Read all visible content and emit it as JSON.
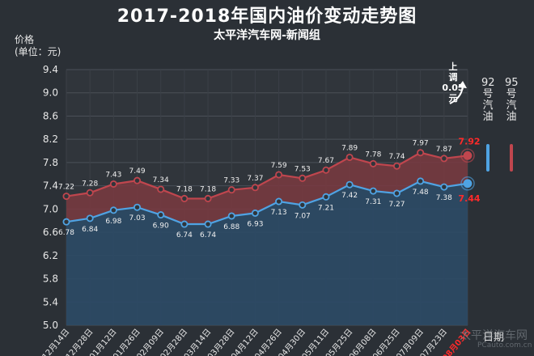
{
  "title": "2017-2018年国内油价变动走势图",
  "subtitle": "太平洋汽车网-新闻组",
  "ylabel_line1": "价格",
  "ylabel_line2": "(单位：元)",
  "xlabel": "日期",
  "legend": {
    "s92": "92号汽油",
    "s95": "95号汽油"
  },
  "annotation": {
    "line1": "上",
    "line2": "调",
    "line3": "0.05",
    "line4": "元"
  },
  "watermark": "太平洋汽车网",
  "watermark_url": "PCauto.com.cn",
  "colors": {
    "s92": "#4fa3e3",
    "s95": "#c0464e",
    "latest_label": "#ff2a2a"
  },
  "chart_data": {
    "type": "line",
    "title": "2017-2018年国内油价变动走势图",
    "xlabel": "日期",
    "ylabel": "价格 (单位：元)",
    "ylim": [
      5.0,
      9.4
    ],
    "yticks": [
      "5.0",
      "5.4",
      "5.8",
      "6.2",
      "6.6",
      "7.0",
      "7.4",
      "7.8",
      "8.2",
      "8.6",
      "9.0",
      "9.4"
    ],
    "grid": true,
    "categories": [
      "12月14日",
      "12月28日",
      "01月12日",
      "01月26日",
      "02月09日",
      "02月28日",
      "03月14日",
      "03月28日",
      "04月12日",
      "04月26日",
      "04月30日",
      "05月11日",
      "05月25日",
      "06月08日",
      "06月25日",
      "07月09日",
      "07月23日",
      "08月03日"
    ],
    "series": [
      {
        "name": "95号汽油",
        "values": [
          7.22,
          7.28,
          7.43,
          7.49,
          7.34,
          7.18,
          7.18,
          7.33,
          7.37,
          7.59,
          7.53,
          7.67,
          7.89,
          7.78,
          7.74,
          7.97,
          7.87,
          7.92
        ]
      },
      {
        "name": "92号汽油",
        "values": [
          6.78,
          6.84,
          6.98,
          7.03,
          6.9,
          6.74,
          6.74,
          6.88,
          6.93,
          7.13,
          7.07,
          7.21,
          7.42,
          7.31,
          7.27,
          7.48,
          7.38,
          7.44
        ]
      }
    ]
  }
}
